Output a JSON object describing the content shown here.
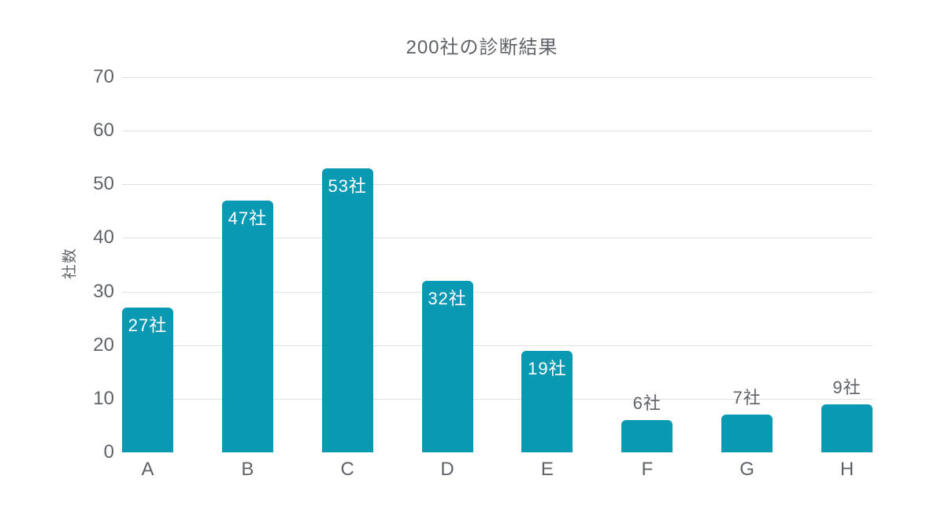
{
  "chart_data": {
    "type": "bar",
    "title": "200社の診断結果",
    "xlabel": "",
    "ylabel": "社数",
    "categories": [
      "A",
      "B",
      "C",
      "D",
      "E",
      "F",
      "G",
      "H"
    ],
    "values": [
      27,
      47,
      53,
      32,
      19,
      6,
      7,
      9
    ],
    "bar_labels": [
      "27社",
      "47社",
      "53社",
      "32社",
      "19社",
      "6社",
      "7社",
      "9社"
    ],
    "ylim": [
      0,
      70
    ],
    "yticks": [
      0,
      10,
      20,
      30,
      40,
      50,
      60,
      70
    ],
    "grid": true,
    "legend": false,
    "colors": {
      "bar": "#0999b3",
      "gridline": "#e0e0e0",
      "text": "#5f6368",
      "label_inside": "#ffffff",
      "label_outside": "#5f6368",
      "background": "#ffffff"
    }
  }
}
